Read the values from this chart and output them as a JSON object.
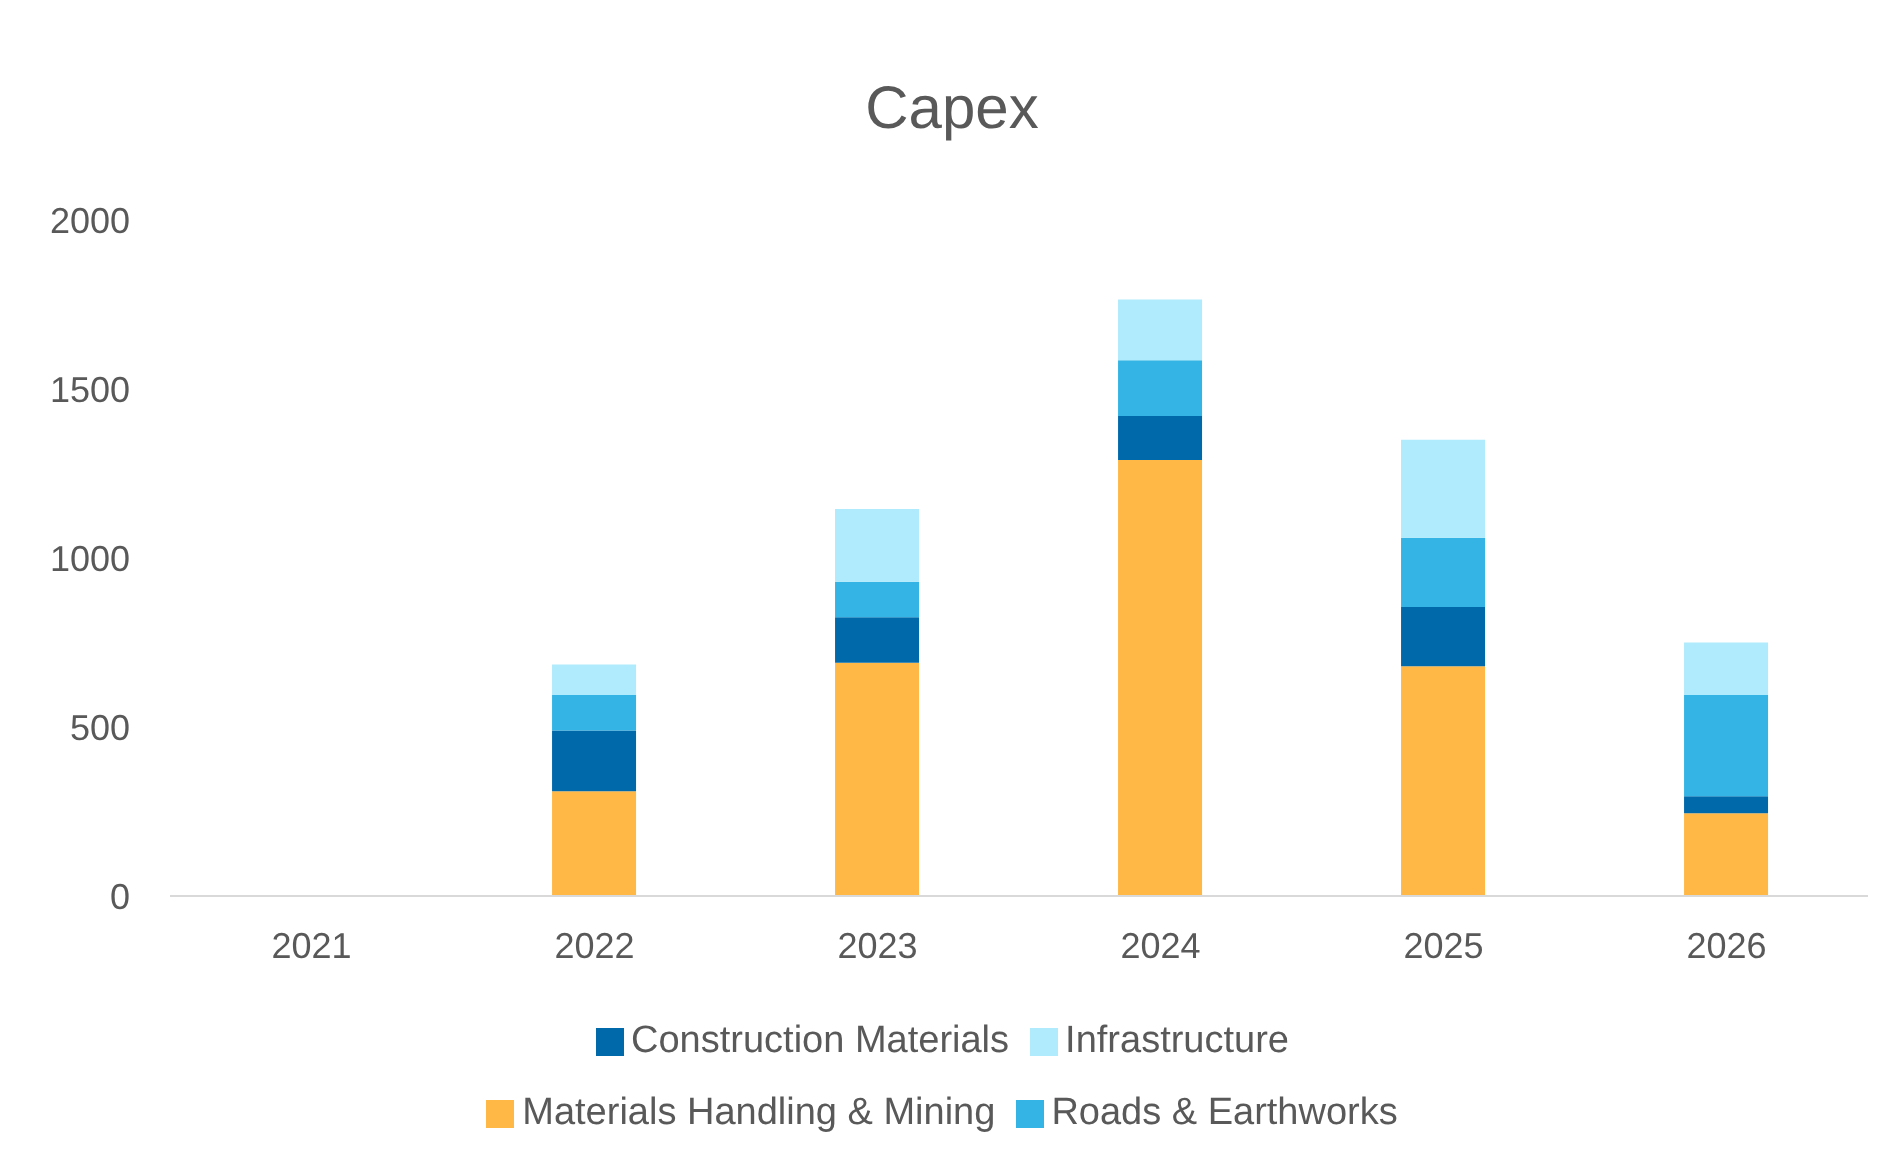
{
  "chart_data": {
    "type": "bar",
    "title": "Capex",
    "stacked": true,
    "categories": [
      "2021",
      "2022",
      "2023",
      "2024",
      "2025",
      "2026"
    ],
    "series": [
      {
        "name": "Materials Handling & Mining",
        "color": "#ffb845",
        "values": [
          0,
          310,
          690,
          1290,
          680,
          245
        ]
      },
      {
        "name": "Construction Materials",
        "color": "#0069aa",
        "values": [
          0,
          180,
          135,
          130,
          175,
          50
        ]
      },
      {
        "name": "Roads & Earthworks",
        "color": "#33b4e5",
        "values": [
          0,
          105,
          105,
          165,
          205,
          300
        ]
      },
      {
        "name": "Infrastructure",
        "color": "#afebfc",
        "values": [
          0,
          90,
          215,
          180,
          290,
          155
        ]
      }
    ],
    "ylim": [
      0,
      2000
    ],
    "yticks": [
      0,
      500,
      1000,
      1500,
      2000
    ],
    "grid": false,
    "legend": "bottom"
  }
}
